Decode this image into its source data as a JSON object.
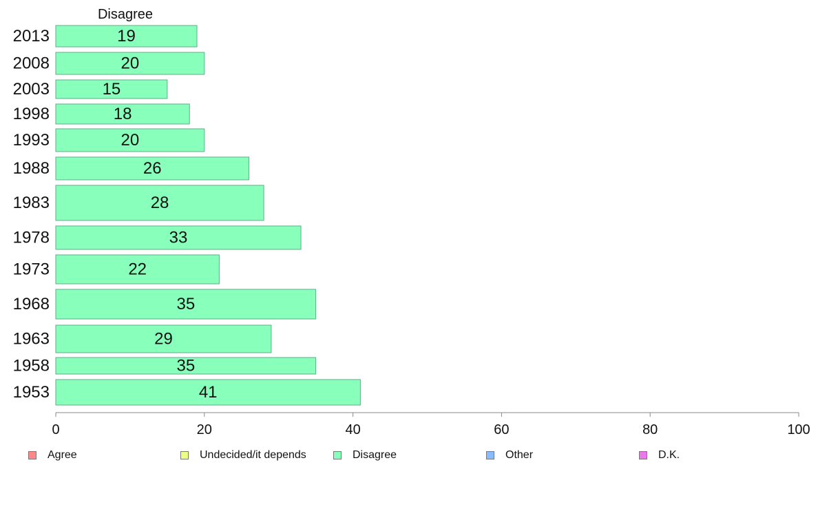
{
  "chart_data": {
    "type": "bar",
    "orientation": "horizontal",
    "title": "Disagree",
    "categories": [
      "2013",
      "2008",
      "2003",
      "1998",
      "1993",
      "1988",
      "1983",
      "1978",
      "1973",
      "1968",
      "1963",
      "1958",
      "1953"
    ],
    "series": [
      {
        "name": "Disagree",
        "values": [
          19,
          20,
          15,
          18,
          20,
          26,
          28,
          33,
          22,
          35,
          29,
          35,
          41
        ],
        "color": "#88ffbb"
      }
    ],
    "data_labels": [
      "19",
      "20",
      "15",
      "18",
      "20",
      "26",
      "28",
      "33",
      "22",
      "35",
      "29",
      "35",
      "41"
    ],
    "xlim": [
      0,
      100
    ],
    "x_ticks": [
      "0",
      "20",
      "40",
      "60",
      "80",
      "100"
    ],
    "grid": false,
    "legend_position": "bottom"
  },
  "legend": [
    {
      "label": "Agree",
      "color": "#ff8888"
    },
    {
      "label": "Undecided/it depends",
      "color": "#eeff88"
    },
    {
      "label": "Disagree",
      "color": "#88ffbb"
    },
    {
      "label": "Other",
      "color": "#88bbff"
    },
    {
      "label": "D.K.",
      "color": "#ee77ee"
    }
  ]
}
